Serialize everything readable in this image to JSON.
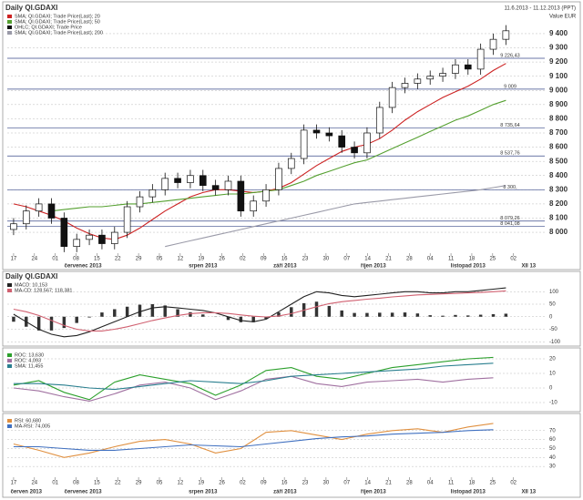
{
  "chart_data": [
    {
      "type": "candlestick",
      "title": "Daily QI.GDAXI",
      "subtitle": "11.6.2013 - 11.12.2013 (PPT)",
      "y_axis_label": "Value EUR",
      "xlim": [
        -0.5,
        41.5
      ],
      "ylim": [
        7840,
        9560
      ],
      "yticks": [
        {
          "value": 8000,
          "label": "8 000"
        },
        {
          "value": 8100,
          "label": "8 100"
        },
        {
          "value": 8200,
          "label": "8 200"
        },
        {
          "value": 8300,
          "label": "8 300"
        },
        {
          "value": 8400,
          "label": "8 400"
        },
        {
          "value": 8500,
          "label": "8 500"
        },
        {
          "value": 8600,
          "label": "8 600"
        },
        {
          "value": 8700,
          "label": "8 700"
        },
        {
          "value": 8800,
          "label": "8 800"
        },
        {
          "value": 8900,
          "label": "8 900"
        },
        {
          "value": 9000,
          "label": "9 000"
        },
        {
          "value": 9100,
          "label": "9 100"
        },
        {
          "value": 9200,
          "label": "9 200"
        },
        {
          "value": 9300,
          "label": "9 300"
        },
        {
          "value": 9400,
          "label": "9 400"
        }
      ],
      "xticks": [
        {
          "value": 0,
          "label": "17"
        },
        {
          "value": 1.65,
          "label": "24"
        },
        {
          "value": 3.3,
          "label": "01"
        },
        {
          "value": 4.95,
          "label": "08"
        },
        {
          "value": 6.6,
          "label": "15"
        },
        {
          "value": 8.25,
          "label": "22"
        },
        {
          "value": 9.9,
          "label": "29"
        },
        {
          "value": 11.55,
          "label": "05"
        },
        {
          "value": 13.2,
          "label": "12"
        },
        {
          "value": 14.85,
          "label": "19"
        },
        {
          "value": 16.5,
          "label": "26"
        },
        {
          "value": 18.15,
          "label": "02"
        },
        {
          "value": 19.8,
          "label": "09"
        },
        {
          "value": 21.45,
          "label": "16"
        },
        {
          "value": 23.1,
          "label": "23"
        },
        {
          "value": 24.75,
          "label": "30"
        },
        {
          "value": 26.4,
          "label": "07"
        },
        {
          "value": 28.05,
          "label": "14"
        },
        {
          "value": 29.7,
          "label": "21"
        },
        {
          "value": 31.35,
          "label": "28"
        },
        {
          "value": 33,
          "label": "04"
        },
        {
          "value": 34.65,
          "label": "11"
        },
        {
          "value": 36.3,
          "label": "18"
        },
        {
          "value": 37.95,
          "label": "25"
        },
        {
          "value": 39.6,
          "label": "02"
        }
      ],
      "month_ticks": [
        {
          "value": 5.5,
          "label": "červenec 2013"
        },
        {
          "value": 15,
          "label": "srpen 2013"
        },
        {
          "value": 21.5,
          "label": "září 2013"
        },
        {
          "value": 28.5,
          "label": "říjen 2013"
        },
        {
          "value": 36,
          "label": "listopad 2013"
        },
        {
          "value": 40.8,
          "label": "XII 13"
        }
      ],
      "levels": [
        {
          "value": 9226.43,
          "label": "9 226,43"
        },
        {
          "value": 9009,
          "label": "9 009"
        },
        {
          "value": 8735.64,
          "label": "8 735,64"
        },
        {
          "value": 8537.76,
          "label": "8 537,76"
        },
        {
          "value": 8300,
          "label": "8 300,"
        },
        {
          "value": 8079.26,
          "label": "8 079,26"
        },
        {
          "value": 8041.08,
          "label": "8 041,08"
        }
      ],
      "ohlc": {
        "name": "OHLC; QI.GDAXI; Trade Price",
        "up_color": "#ffffff",
        "down_color": "#111111",
        "open": [
          8020,
          8060,
          8150,
          8200,
          8100,
          7900,
          7950,
          7980,
          7920,
          8000,
          8180,
          8250,
          8300,
          8380,
          8350,
          8400,
          8330,
          8300,
          8360,
          8150,
          8220,
          8300,
          8450,
          8520,
          8720,
          8700,
          8680,
          8600,
          8560,
          8700,
          8880,
          9020,
          9050,
          9080,
          9100,
          9120,
          9180,
          9150,
          9290,
          9360
        ],
        "high": [
          8100,
          8190,
          8240,
          8240,
          8140,
          7990,
          8020,
          8020,
          8040,
          8220,
          8290,
          8340,
          8420,
          8420,
          8440,
          8440,
          8370,
          8400,
          8400,
          8260,
          8340,
          8490,
          8560,
          8760,
          8760,
          8740,
          8720,
          8640,
          8740,
          8920,
          9060,
          9090,
          9120,
          9140,
          9160,
          9220,
          9220,
          9330,
          9400,
          9460
        ],
        "low": [
          7980,
          8020,
          8110,
          8060,
          7860,
          7860,
          7910,
          7880,
          7880,
          7960,
          8140,
          8210,
          8260,
          8310,
          8310,
          8290,
          8260,
          8260,
          8110,
          8110,
          8180,
          8260,
          8410,
          8480,
          8660,
          8640,
          8560,
          8520,
          8520,
          8660,
          8840,
          8980,
          9010,
          9040,
          9060,
          9080,
          9110,
          9110,
          9250,
          9320
        ],
        "close": [
          8060,
          8150,
          8200,
          8100,
          7900,
          7950,
          7980,
          7920,
          8000,
          8180,
          8250,
          8300,
          8380,
          8350,
          8400,
          8330,
          8300,
          8360,
          8150,
          8220,
          8300,
          8450,
          8520,
          8720,
          8700,
          8680,
          8600,
          8560,
          8700,
          8880,
          9020,
          9050,
          9080,
          9100,
          9120,
          9180,
          9150,
          9290,
          9360,
          9420
        ]
      },
      "series": [
        {
          "name": "SMA; QI.GDAXI; Trade Price(Last); 20",
          "color": "#cc2222",
          "values": [
            8200,
            8180,
            8150,
            8120,
            8080,
            8030,
            7990,
            7960,
            7950,
            7980,
            8030,
            8090,
            8150,
            8200,
            8250,
            8280,
            8300,
            8300,
            8290,
            8280,
            8290,
            8310,
            8350,
            8410,
            8470,
            8520,
            8570,
            8600,
            8620,
            8660,
            8720,
            8790,
            8850,
            8900,
            8950,
            8990,
            9030,
            9080,
            9140,
            9190
          ]
        },
        {
          "name": "SMA; QI.GDAXI; Trade Price(Last); 50",
          "color": "#55a030",
          "values": [
            null,
            null,
            null,
            8150,
            8160,
            8170,
            8180,
            8180,
            8190,
            8200,
            8200,
            8210,
            8220,
            8230,
            8240,
            8250,
            8260,
            8270,
            8270,
            8280,
            8290,
            8300,
            8330,
            8360,
            8400,
            8430,
            8460,
            8490,
            8510,
            8550,
            8590,
            8630,
            8670,
            8710,
            8750,
            8790,
            8820,
            8860,
            8900,
            8930
          ]
        },
        {
          "name": "SMA; QI.GDAXI; Trade Price(Last); 200",
          "color": "#9a9aa8",
          "values": [
            null,
            null,
            null,
            null,
            null,
            null,
            null,
            null,
            null,
            null,
            null,
            null,
            7900,
            7920,
            7940,
            7960,
            7980,
            8000,
            8020,
            8040,
            8060,
            8080,
            8100,
            8120,
            8140,
            8160,
            8180,
            8200,
            8210,
            8220,
            8230,
            8240,
            8250,
            8260,
            8270,
            8280,
            8290,
            8300,
            8315,
            8330
          ]
        }
      ]
    },
    {
      "type": "macd",
      "title": "Daily QI.GDAXI",
      "xlim": [
        -0.5,
        41.5
      ],
      "ylim": [
        -110,
        130
      ],
      "yticks": [
        100,
        50,
        0,
        -50,
        -100
      ],
      "series": [
        {
          "name": "MACD: 10,153",
          "color": "#222222",
          "values": [
            10,
            -20,
            -50,
            -70,
            -80,
            -75,
            -60,
            -40,
            -20,
            0,
            20,
            35,
            40,
            35,
            30,
            25,
            15,
            0,
            -15,
            -20,
            -10,
            20,
            50,
            80,
            100,
            95,
            85,
            80,
            85,
            90,
            95,
            100,
            100,
            95,
            95,
            100,
            100,
            105,
            110,
            115
          ]
        },
        {
          "name": "MA-CD: 128,567; 118,381",
          "color": "#d06070",
          "values": [
            30,
            20,
            5,
            -15,
            -35,
            -50,
            -57,
            -57,
            -50,
            -40,
            -28,
            -15,
            -5,
            5,
            12,
            16,
            16,
            13,
            7,
            2,
            -1,
            3,
            12,
            26,
            40,
            52,
            60,
            65,
            70,
            74,
            79,
            83,
            87,
            89,
            91,
            93,
            95,
            97,
            100,
            103
          ]
        }
      ],
      "histogram": {
        "color": "#333333",
        "values": [
          -20,
          -40,
          -55,
          -55,
          -45,
          -25,
          -3,
          17,
          30,
          40,
          48,
          50,
          45,
          30,
          18,
          9,
          -1,
          -13,
          -22,
          -22,
          -9,
          17,
          38,
          54,
          60,
          43,
          25,
          15,
          15,
          16,
          16,
          17,
          13,
          6,
          4,
          7,
          5,
          8,
          10,
          12
        ]
      }
    },
    {
      "type": "line",
      "xlim": [
        -0.5,
        41.5
      ],
      "ylim": [
        -15,
        25
      ],
      "yticks": [
        20,
        10,
        0,
        -10
      ],
      "x": [
        0,
        2,
        4,
        6,
        8,
        10,
        12,
        14,
        16,
        18,
        20,
        22,
        24,
        26,
        28,
        30,
        32,
        34,
        36,
        38
      ],
      "series": [
        {
          "name": "ROC: 13,630",
          "color": "#2ca02c",
          "values": [
            2,
            5,
            -3,
            -8,
            4,
            9,
            6,
            3,
            -5,
            2,
            12,
            14,
            8,
            6,
            10,
            14,
            16,
            18,
            20,
            21
          ]
        },
        {
          "name": "ROC: 4,093",
          "color": "#a070a0",
          "values": [
            0,
            -2,
            -6,
            -9,
            -4,
            2,
            4,
            0,
            -8,
            -2,
            6,
            8,
            3,
            1,
            4,
            5,
            6,
            4,
            6,
            7
          ]
        },
        {
          "name": "SMA: 11,455",
          "color": "#2a7f8f",
          "values": [
            3,
            3,
            2,
            0,
            -1,
            1,
            3,
            5,
            4,
            3,
            5,
            8,
            9,
            10,
            11,
            12,
            13,
            15,
            16,
            17
          ]
        }
      ]
    },
    {
      "type": "line",
      "xlim": [
        -0.5,
        41.5
      ],
      "ylim": [
        20,
        85
      ],
      "yticks": [
        70,
        60,
        50,
        40,
        30
      ],
      "x": [
        0,
        2,
        4,
        6,
        8,
        10,
        12,
        14,
        16,
        18,
        20,
        22,
        24,
        26,
        28,
        30,
        32,
        34,
        36,
        38
      ],
      "series": [
        {
          "name": "RSI: 60,680",
          "color": "#e09040",
          "values": [
            55,
            48,
            40,
            45,
            52,
            58,
            60,
            55,
            45,
            50,
            68,
            70,
            65,
            60,
            66,
            70,
            72,
            68,
            74,
            78
          ]
        },
        {
          "name": "MA-RSI: 74,005",
          "color": "#4070c0",
          "values": [
            52,
            52,
            50,
            48,
            48,
            50,
            52,
            54,
            53,
            52,
            55,
            58,
            61,
            63,
            64,
            66,
            67,
            68,
            70,
            71
          ]
        }
      ],
      "xticks": [
        {
          "value": 0,
          "label": "17"
        },
        {
          "value": 1.65,
          "label": "24"
        },
        {
          "value": 3.3,
          "label": "01"
        },
        {
          "value": 4.95,
          "label": "08"
        },
        {
          "value": 6.6,
          "label": "15"
        },
        {
          "value": 8.25,
          "label": "22"
        },
        {
          "value": 9.9,
          "label": "29"
        },
        {
          "value": 11.55,
          "label": "05"
        },
        {
          "value": 13.2,
          "label": "12"
        },
        {
          "value": 14.85,
          "label": "19"
        },
        {
          "value": 16.5,
          "label": "26"
        },
        {
          "value": 18.15,
          "label": "02"
        },
        {
          "value": 19.8,
          "label": "09"
        },
        {
          "value": 21.45,
          "label": "16"
        },
        {
          "value": 23.1,
          "label": "23"
        },
        {
          "value": 24.75,
          "label": "30"
        },
        {
          "value": 26.4,
          "label": "07"
        },
        {
          "value": 28.05,
          "label": "14"
        },
        {
          "value": 29.7,
          "label": "21"
        },
        {
          "value": 31.35,
          "label": "28"
        },
        {
          "value": 33,
          "label": "04"
        },
        {
          "value": 34.65,
          "label": "11"
        },
        {
          "value": 36.3,
          "label": "18"
        },
        {
          "value": 37.95,
          "label": "25"
        },
        {
          "value": 39.6,
          "label": "02"
        }
      ],
      "month_ticks": [
        {
          "value": 1,
          "label": "červen 2013"
        },
        {
          "value": 5.5,
          "label": "červenec 2013"
        },
        {
          "value": 15,
          "label": "srpen 2013"
        },
        {
          "value": 21.5,
          "label": "září 2013"
        },
        {
          "value": 28.5,
          "label": "říjen 2013"
        },
        {
          "value": 36,
          "label": "listopad 2013"
        },
        {
          "value": 40.8,
          "label": "XII 13"
        }
      ]
    }
  ]
}
